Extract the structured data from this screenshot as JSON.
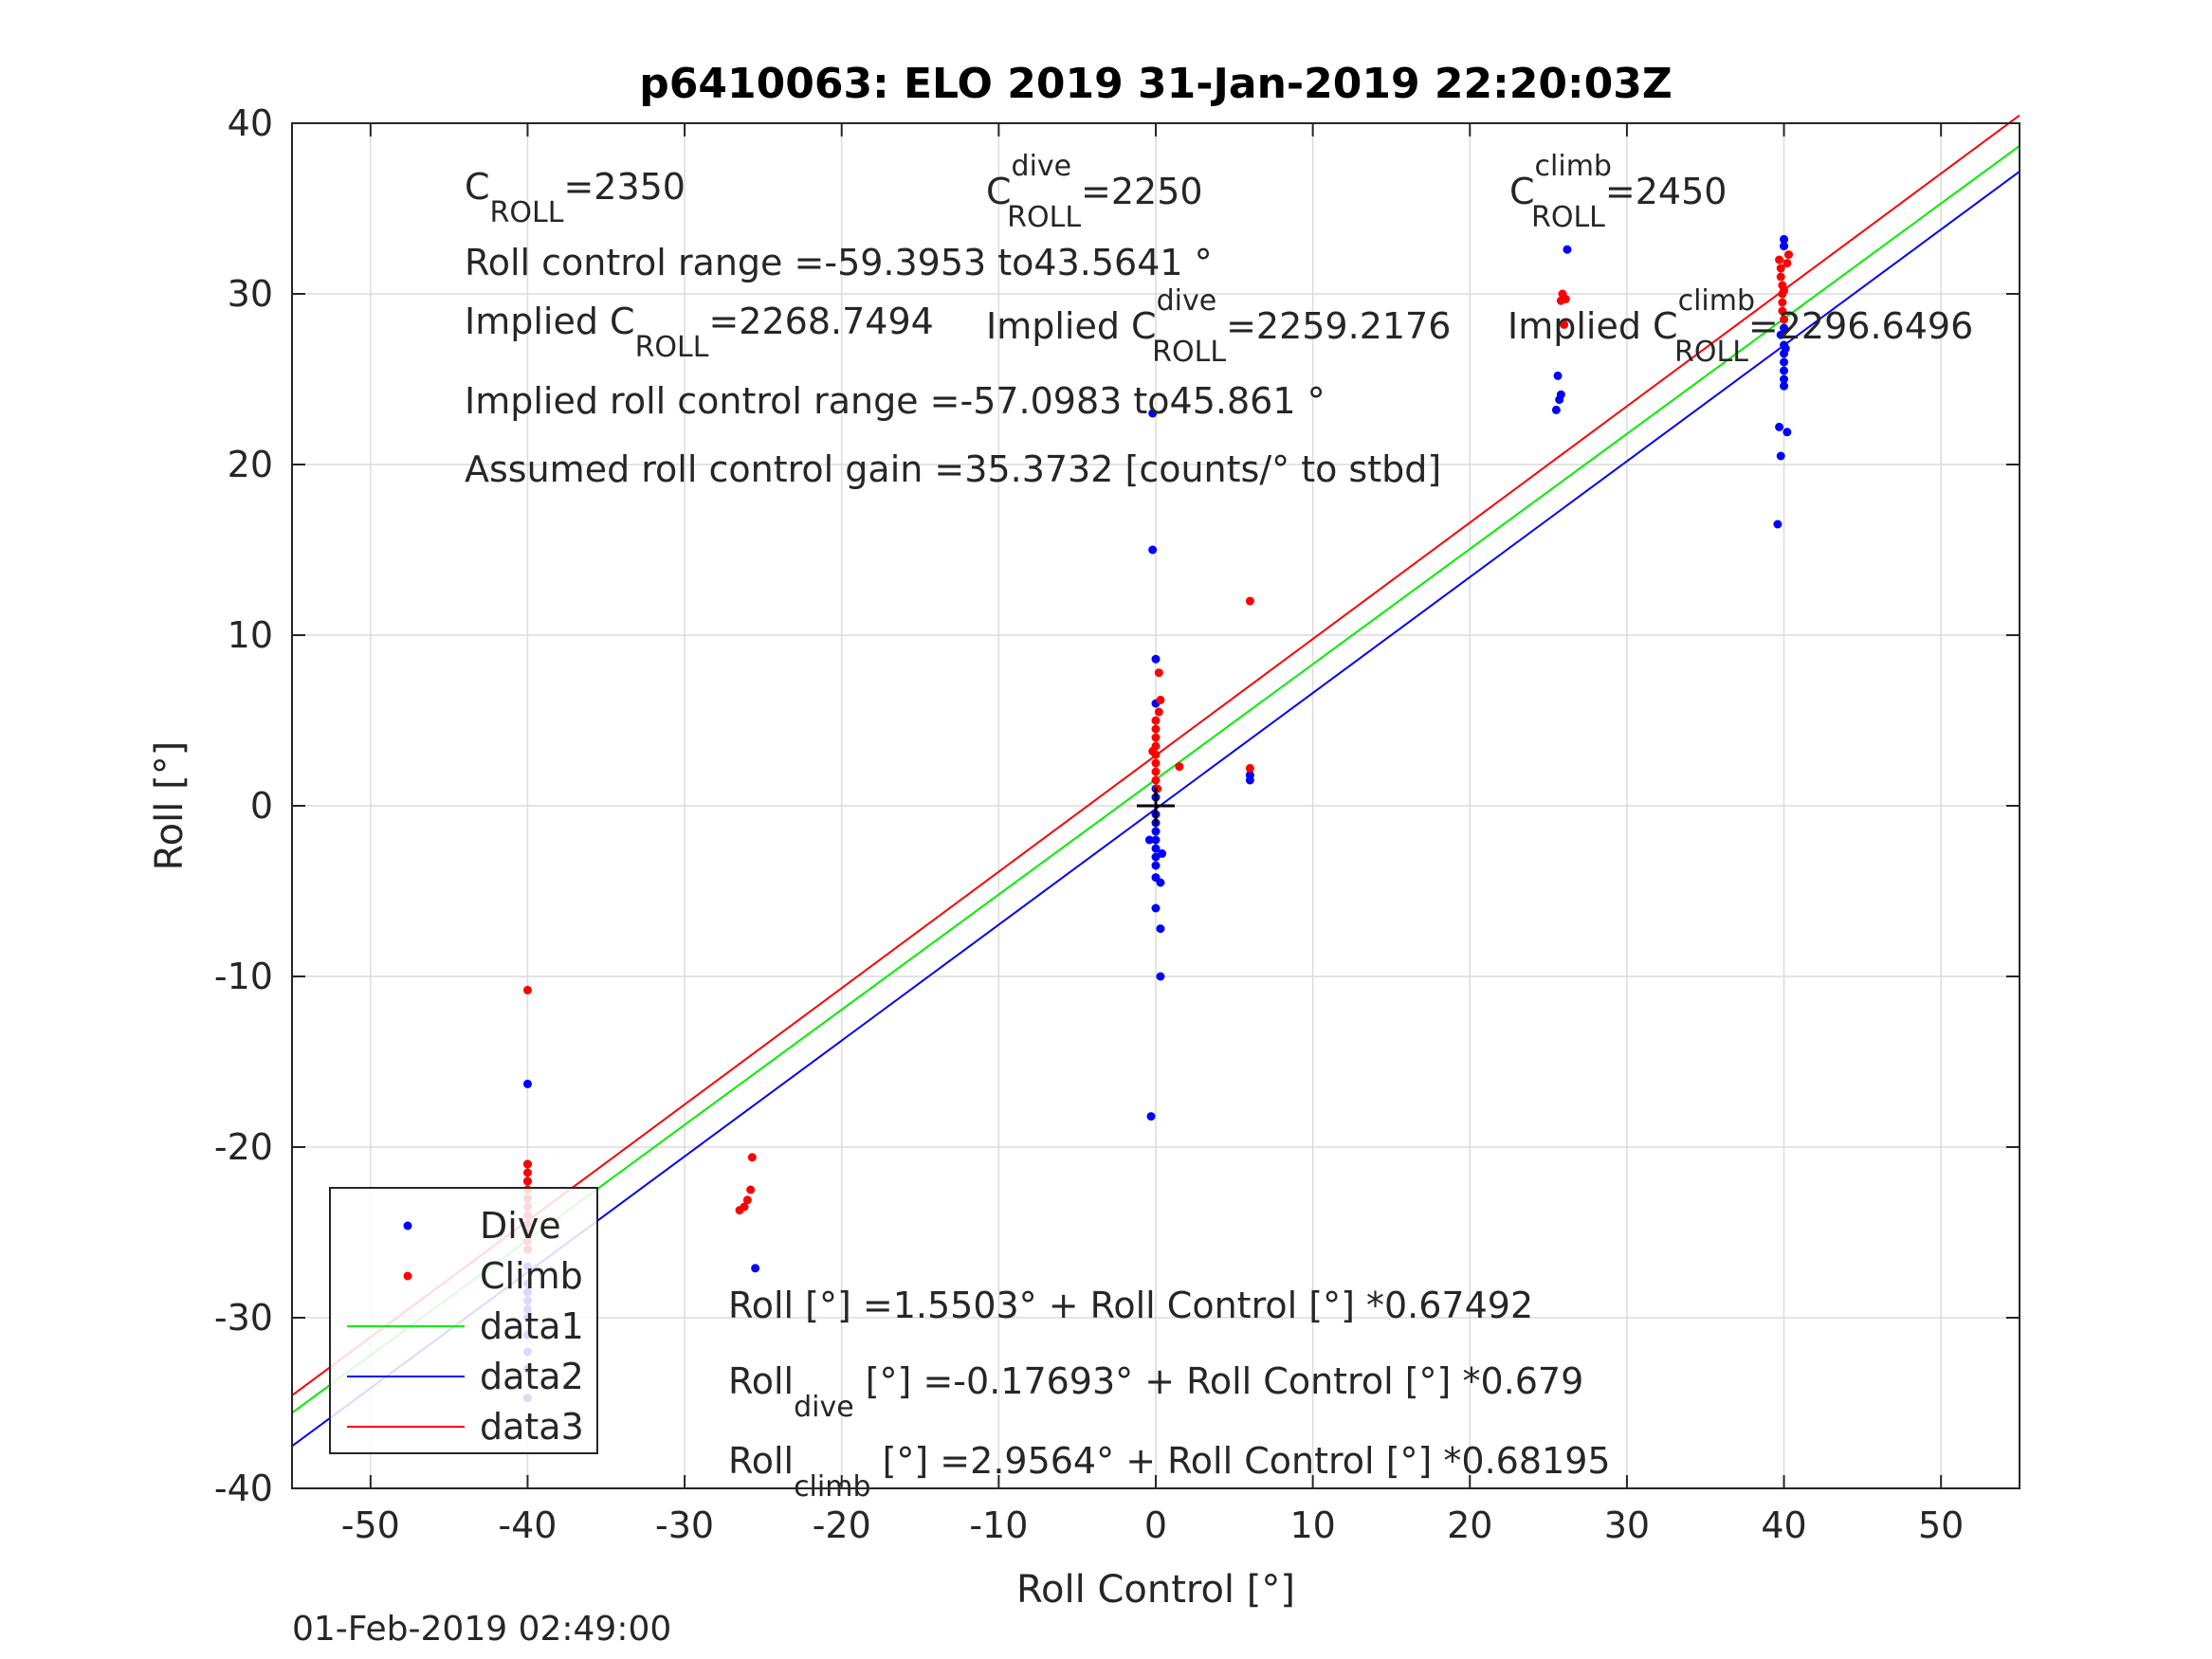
{
  "chart_data": {
    "type": "scatter",
    "title": "p6410063: ELO 2019 31-Jan-2019 22:20:03Z",
    "xlabel": "Roll Control [°]",
    "ylabel": "Roll [°]",
    "xlim": [
      -55,
      55
    ],
    "ylim": [
      -40,
      40
    ],
    "x_ticks": [
      -50,
      -40,
      -30,
      -20,
      -10,
      0,
      10,
      20,
      30,
      40,
      50
    ],
    "y_ticks": [
      -40,
      -30,
      -20,
      -10,
      0,
      10,
      20,
      30,
      40
    ],
    "grid": true,
    "legend_position": "bottom-left",
    "timestamp": "01-Feb-2019 02:49:00",
    "colors": {
      "dive": "#0000ff",
      "climb": "#ff0000",
      "data1": "#00ee00",
      "data2": "#0000ff",
      "data3": "#ff0000",
      "center_mark": "#000000"
    },
    "series": [
      {
        "name": "Dive",
        "kind": "points",
        "color": "#0000ff",
        "points": [
          [
            -40,
            -16.3
          ],
          [
            -40,
            -21
          ],
          [
            -40,
            -22
          ],
          [
            -40,
            -23
          ],
          [
            -40,
            -24
          ],
          [
            -40,
            -25
          ],
          [
            -40,
            -26
          ],
          [
            -40,
            -27
          ],
          [
            -40,
            -28
          ],
          [
            -40,
            -28.5
          ],
          [
            -40,
            -29
          ],
          [
            -40,
            -29.5
          ],
          [
            -40,
            -30
          ],
          [
            -40,
            -31
          ],
          [
            -40,
            -32
          ],
          [
            -40,
            -33
          ],
          [
            -40,
            -34.7
          ],
          [
            -25.5,
            -27.1
          ],
          [
            -0.2,
            23
          ],
          [
            -0.2,
            15
          ],
          [
            0,
            8.6
          ],
          [
            0,
            6
          ],
          [
            0,
            1
          ],
          [
            0,
            0.5
          ],
          [
            0,
            -0.5
          ],
          [
            0,
            -1
          ],
          [
            0,
            -1.5
          ],
          [
            0,
            -2
          ],
          [
            0,
            -2.5
          ],
          [
            0,
            -3
          ],
          [
            0,
            -3.5
          ],
          [
            0,
            -4.2
          ],
          [
            0,
            -6
          ],
          [
            0.3,
            -4.5
          ],
          [
            0.3,
            -7.2
          ],
          [
            0.3,
            -10
          ],
          [
            -0.3,
            -18.2
          ],
          [
            -0.4,
            -2
          ],
          [
            0.4,
            -2.8
          ],
          [
            6,
            1.5
          ],
          [
            6,
            1.8
          ],
          [
            25.5,
            23.2
          ],
          [
            25.7,
            23.8
          ],
          [
            25.8,
            24.1
          ],
          [
            25.6,
            25.2
          ],
          [
            26.2,
            32.6
          ],
          [
            40,
            33.2
          ],
          [
            40,
            32.8
          ],
          [
            40,
            28
          ],
          [
            40,
            27
          ],
          [
            40,
            26.5
          ],
          [
            40,
            26
          ],
          [
            40,
            25.5
          ],
          [
            40,
            25
          ],
          [
            40,
            24.6
          ],
          [
            39.7,
            22.2
          ],
          [
            40.2,
            21.9
          ],
          [
            39.8,
            20.5
          ],
          [
            39.6,
            16.5
          ],
          [
            39.8,
            27.6
          ],
          [
            40.1,
            26.8
          ]
        ]
      },
      {
        "name": "Climb",
        "kind": "points",
        "color": "#ff0000",
        "points": [
          [
            -40,
            -10.8
          ],
          [
            -40,
            -21
          ],
          [
            -40,
            -21.5
          ],
          [
            -40,
            -22
          ],
          [
            -40,
            -22.5
          ],
          [
            -40,
            -23
          ],
          [
            -40,
            -23.5
          ],
          [
            -40,
            -24
          ],
          [
            -40,
            -24.5
          ],
          [
            -40,
            -25
          ],
          [
            -40,
            -25.5
          ],
          [
            -40,
            -26
          ],
          [
            -26.5,
            -23.7
          ],
          [
            -26.2,
            -23.5
          ],
          [
            -26,
            -23.1
          ],
          [
            -25.8,
            -22.5
          ],
          [
            -25.7,
            -20.6
          ],
          [
            0,
            1.5
          ],
          [
            0,
            2
          ],
          [
            0,
            2.5
          ],
          [
            0,
            3
          ],
          [
            0,
            3.5
          ],
          [
            0,
            4
          ],
          [
            0,
            4.5
          ],
          [
            0,
            5
          ],
          [
            0.2,
            5.5
          ],
          [
            0.3,
            6.2
          ],
          [
            0.2,
            7.8
          ],
          [
            1.5,
            2.3
          ],
          [
            6,
            12
          ],
          [
            6,
            2.2
          ],
          [
            0.1,
            1
          ],
          [
            -0.2,
            3.2
          ],
          [
            25.9,
            30
          ],
          [
            26.1,
            29.7
          ],
          [
            25.8,
            29.6
          ],
          [
            26,
            28.2
          ],
          [
            39.7,
            32
          ],
          [
            39.8,
            31.5
          ],
          [
            39.8,
            31
          ],
          [
            39.9,
            30.5
          ],
          [
            39.9,
            30
          ],
          [
            39.9,
            29.5
          ],
          [
            39.9,
            29
          ],
          [
            40,
            28.5
          ],
          [
            40.3,
            32.3
          ],
          [
            40.2,
            31.8
          ],
          [
            40,
            30.2
          ]
        ]
      },
      {
        "name": "data1",
        "kind": "line",
        "color": "#00ee00",
        "intercept": 1.5503,
        "slope": 0.67492
      },
      {
        "name": "data2",
        "kind": "line",
        "color": "#0000ff",
        "intercept": -0.17693,
        "slope": 0.679
      },
      {
        "name": "data3",
        "kind": "line",
        "color": "#ff0000",
        "intercept": 2.9564,
        "slope": 0.68195
      }
    ],
    "center_mark": [
      0,
      0
    ],
    "annotations": {
      "c_roll": {
        "base": "C",
        "sub": "ROLL",
        "sup": "",
        "value": "=2350"
      },
      "c_roll_dive": {
        "base": "C",
        "sub": "ROLL",
        "sup": "dive",
        "value": "=2250"
      },
      "c_roll_climb": {
        "base": "C",
        "sub": "ROLL",
        "sup": "climb",
        "value": "=2450"
      },
      "roll_control_range": "Roll control range =-59.3953 to43.5641 °",
      "implied_c_roll": {
        "base": "Implied C",
        "sub": "ROLL",
        "sup": "",
        "value": "=2268.7494"
      },
      "implied_c_roll_dive": {
        "base": "Implied C",
        "sub": "ROLL",
        "sup": "dive",
        "value": "=2259.2176"
      },
      "implied_c_roll_climb": {
        "base": "Implied C",
        "sub": "ROLL",
        "sup": "climb",
        "value": "=2296.6496"
      },
      "implied_roll_control_range": "Implied roll control range =-57.0983 to45.861 °",
      "assumed_gain": "Assumed roll control gain =35.3732 [counts/° to stbd]",
      "fit_all": "Roll [°] =1.5503° + Roll Control [°] *0.67492",
      "fit_dive": {
        "base": "Roll",
        "sub": "dive",
        "value": " [°] =-0.17693° + Roll Control [°] *0.679"
      },
      "fit_climb": {
        "base": "Roll",
        "sub": "climb",
        "value": " [°] =2.9564° + Roll Control [°] *0.68195"
      }
    }
  }
}
